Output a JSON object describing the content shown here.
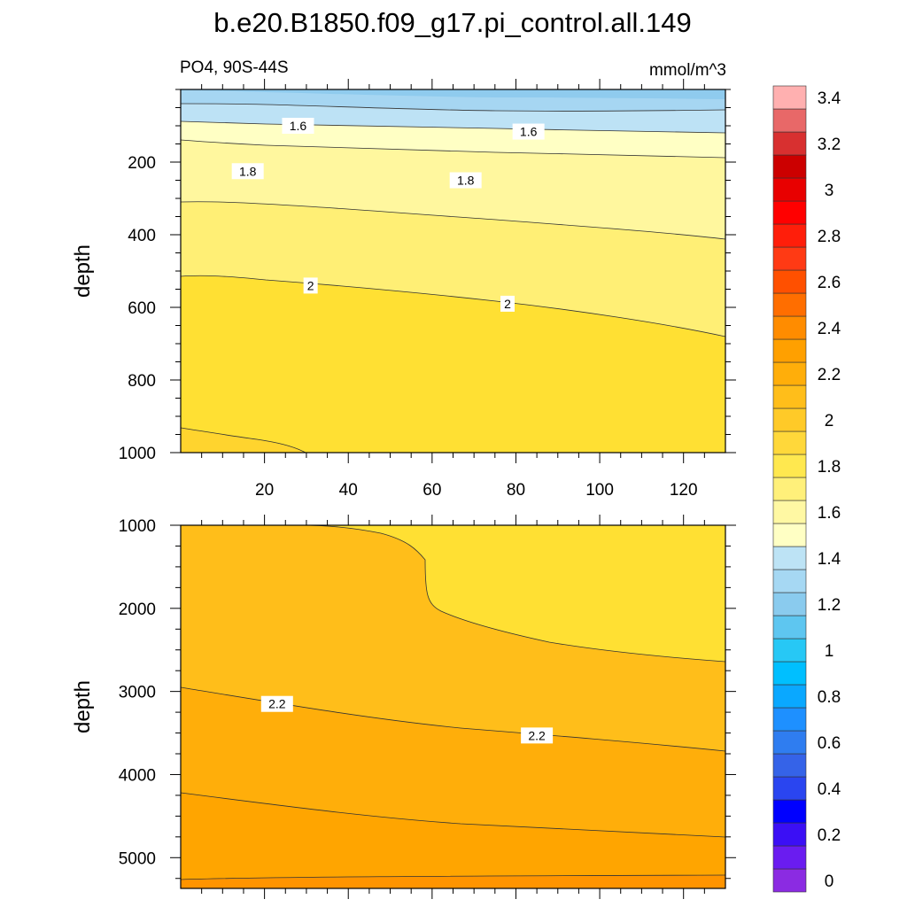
{
  "chart_data": {
    "type": "contour",
    "title": "b.e20.B1850.f09_g17.pi_control.all.149",
    "variable_label": "PO4, 90S-44S",
    "units_label": "mmol/m^3",
    "colorbar": {
      "levels": [
        0,
        0.1,
        0.2,
        0.3,
        0.4,
        0.5,
        0.6,
        0.7,
        0.8,
        0.9,
        1.0,
        1.1,
        1.2,
        1.3,
        1.4,
        1.5,
        1.6,
        1.7,
        1.8,
        1.9,
        2.0,
        2.1,
        2.2,
        2.3,
        2.4,
        2.5,
        2.6,
        2.7,
        2.8,
        2.9,
        3.0,
        3.1,
        3.2,
        3.3,
        3.4,
        3.5
      ],
      "tick_labels": [
        "0",
        "0.2",
        "0.4",
        "0.6",
        "0.8",
        "1",
        "1.2",
        "1.4",
        "1.6",
        "1.8",
        "2",
        "2.2",
        "2.4",
        "2.6",
        "2.8",
        "3",
        "3.2",
        "3.4"
      ],
      "colors": [
        "#8b2be2",
        "#6a1cf0",
        "#3b0ff5",
        "#0000ff",
        "#2a45f0",
        "#3563e8",
        "#2f7df0",
        "#1e90ff",
        "#0aa8ff",
        "#00bfff",
        "#27c8f5",
        "#5ec6f0",
        "#8acbee",
        "#a6d8f3",
        "#bde3f5",
        "#ffffc4",
        "#fff8a3",
        "#fff07a",
        "#ffe84f",
        "#ffd83a",
        "#ffca28",
        "#ffbe1a",
        "#ffae0a",
        "#ffa000",
        "#ff8c00",
        "#ff6e00",
        "#ff5000",
        "#ff3a14",
        "#ff1e0a",
        "#ff0000",
        "#e80000",
        "#cc0000",
        "#d83030",
        "#e86868",
        "#ffb0b0"
      ]
    },
    "panels": [
      {
        "name": "upper",
        "xlim": [
          0,
          130
        ],
        "ylim": [
          1000,
          0
        ],
        "xticks": [
          20,
          40,
          60,
          80,
          100,
          120
        ],
        "yticks": [
          200,
          400,
          600,
          800,
          1000
        ],
        "ylabel": "depth",
        "contour_labels": [
          {
            "text": "1.6",
            "x": 28,
            "y": 100
          },
          {
            "text": "1.6",
            "x": 83,
            "y": 116
          },
          {
            "text": "1.8",
            "x": 16,
            "y": 225
          },
          {
            "text": "1.8",
            "x": 68,
            "y": 250
          },
          {
            "text": "2",
            "x": 31,
            "y": 540
          },
          {
            "text": "2",
            "x": 78,
            "y": 590
          }
        ]
      },
      {
        "name": "lower",
        "xlim": [
          0,
          130
        ],
        "ylim": [
          5370,
          1000
        ],
        "yticks": [
          1000,
          2000,
          3000,
          4000,
          5000
        ],
        "ylabel": "depth",
        "contour_labels": [
          {
            "text": "2.2",
            "x": 23,
            "y": 3150
          },
          {
            "text": "2.2",
            "x": 85,
            "y": 3530
          }
        ]
      }
    ]
  }
}
